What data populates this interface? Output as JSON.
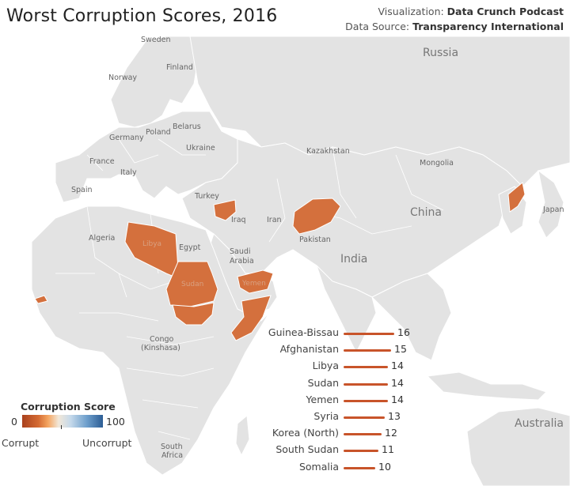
{
  "title": "Worst Corruption Scores, 2016",
  "credits": {
    "viz_prefix": "Visualization: ",
    "viz_value": "Data Crunch Podcast",
    "src_prefix": "Data Source: ",
    "src_value": "Transparency International"
  },
  "map_labels": {
    "sweden": "Sweden",
    "finland": "Finland",
    "norway": "Norway",
    "russia": "Russia",
    "belarus": "Belarus",
    "poland": "Poland",
    "germany": "Germany",
    "ukraine": "Ukraine",
    "france": "France",
    "italy": "Italy",
    "kazakhstan": "Kazakhstan",
    "mongolia": "Mongolia",
    "spain": "Spain",
    "turkey": "Turkey",
    "iraq": "Iraq",
    "iran": "Iran",
    "china": "China",
    "japan": "Japan",
    "algeria": "Algeria",
    "libya": "Libya",
    "egypt": "Egypt",
    "saudi_arabia_1": "Saudi",
    "saudi_arabia_2": "Arabia",
    "pakistan": "Pakistan",
    "india": "India",
    "sudan": "Sudan",
    "yemen": "Yemen",
    "congo_1": "Congo",
    "congo_2": "(Kinshasa)",
    "south_africa_1": "South",
    "south_africa_2": "Africa",
    "australia": "Australia"
  },
  "chart_data": {
    "type": "bar",
    "categories": [
      "Guinea-Bissau",
      "Afghanistan",
      "Libya",
      "Sudan",
      "Yemen",
      "Syria",
      "Korea (North)",
      "South Sudan",
      "Somalia"
    ],
    "values": [
      16,
      15,
      14,
      14,
      14,
      13,
      12,
      11,
      10
    ],
    "bar_color": "#c8542a"
  },
  "legend": {
    "title": "Corruption Score",
    "min": "0",
    "max": "100",
    "low_label": "Corrupt",
    "high_label": "Uncorrupt"
  },
  "colors": {
    "land": "#e3e3e3",
    "border": "#ffffff",
    "water": "#ffffff",
    "highlight": "#d4703d"
  }
}
